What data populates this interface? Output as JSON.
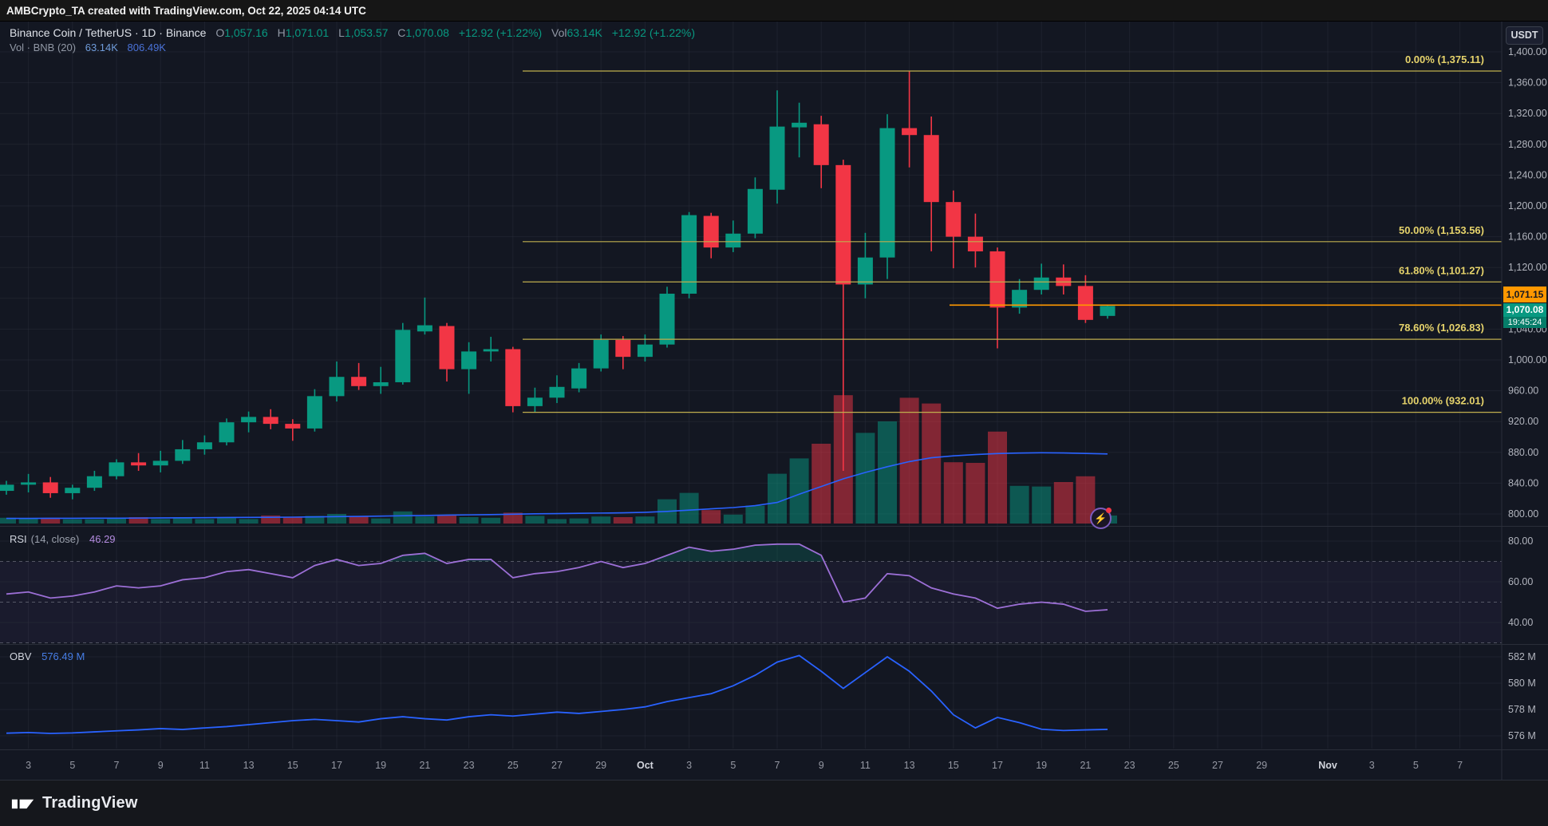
{
  "attribution": {
    "text": "AMBCrypto_TA created with TradingView.com, Oct 22, 2025 04:14 UTC"
  },
  "header": {
    "title": "Binance Coin / TetherUS · 1D · Binance",
    "o_label": "O",
    "o": "1,057.16",
    "h_label": "H",
    "h": "1,071.01",
    "l_label": "L",
    "l": "1,053.57",
    "c_label": "C",
    "c": "1,070.08",
    "change": "+12.92 (+1.22%)",
    "vol_label": "Vol",
    "vol_value": "63.14K",
    "vol_change": "+12.92 (+1.22%)",
    "indicator_name": "Vol · BNB (20)",
    "indicator_v1": "63.14K",
    "indicator_v2": "806.49K"
  },
  "axis": {
    "currency": "USDT"
  },
  "footer": {
    "logo_text": "TradingView"
  },
  "colors": {
    "up": "#089981",
    "down": "#f23645",
    "vol_up": "rgba(8,153,129,0.5)",
    "vol_down": "rgba(242,54,69,0.5)",
    "vol_ma": "#2962ff",
    "obv_line": "#2962ff",
    "rsi_line": "#9c6fd6",
    "fib_line": "#bfae4e",
    "fib_text": "#e6d36b",
    "price_ray": "#ff9800",
    "axis_text": "#b2b5be",
    "grid": "rgba(42,46,57,0.5)"
  },
  "chart_data": {
    "type": "candlestick",
    "title": "Binance Coin / TetherUS · 1D · Binance",
    "price_axis": {
      "min": 800,
      "max": 1400,
      "step": 40,
      "hidden_tick": 1080
    },
    "x_axis": {
      "labels": [
        [
          "3",
          1
        ],
        [
          "5",
          3
        ],
        [
          "7",
          5
        ],
        [
          "9",
          7
        ],
        [
          "11",
          9
        ],
        [
          "13",
          11
        ],
        [
          "15",
          13
        ],
        [
          "17",
          15
        ],
        [
          "19",
          17
        ],
        [
          "21",
          19
        ],
        [
          "23",
          21
        ],
        [
          "25",
          23
        ],
        [
          "27",
          25
        ],
        [
          "29",
          27
        ],
        [
          "Oct",
          29
        ],
        [
          "3",
          31
        ],
        [
          "5",
          33
        ],
        [
          "7",
          35
        ],
        [
          "9",
          37
        ],
        [
          "11",
          39
        ],
        [
          "13",
          41
        ],
        [
          "15",
          43
        ],
        [
          "17",
          45
        ],
        [
          "19",
          47
        ],
        [
          "21",
          49
        ],
        [
          "23",
          51
        ],
        [
          "25",
          53
        ],
        [
          "27",
          55
        ],
        [
          "29",
          57
        ],
        [
          "Nov",
          60
        ],
        [
          "3",
          62
        ],
        [
          "5",
          64
        ],
        [
          "7",
          66
        ]
      ]
    },
    "candles_note": "each row: [date, open, high, low, close, volume_K]",
    "candles": [
      [
        "Sep 2",
        830,
        843,
        825,
        838,
        45
      ],
      [
        "Sep 3",
        838,
        852,
        828,
        841,
        38
      ],
      [
        "Sep 4",
        841,
        848,
        821,
        827,
        45
      ],
      [
        "Sep 5",
        827,
        838,
        819,
        834,
        33
      ],
      [
        "Sep 6",
        834,
        856,
        830,
        849,
        33
      ],
      [
        "Sep 7",
        849,
        871,
        845,
        867,
        38
      ],
      [
        "Sep 8",
        867,
        879,
        856,
        863,
        50
      ],
      [
        "Sep 9",
        863,
        882,
        854,
        869,
        35
      ],
      [
        "Sep 10",
        869,
        896,
        865,
        884,
        48
      ],
      [
        "Sep 11",
        884,
        902,
        877,
        893,
        35
      ],
      [
        "Sep 12",
        893,
        924,
        889,
        919,
        50
      ],
      [
        "Sep 13",
        919,
        933,
        906,
        926,
        35
      ],
      [
        "Sep 14",
        926,
        936,
        910,
        917,
        63
      ],
      [
        "Sep 15",
        917,
        923,
        895,
        911,
        50
      ],
      [
        "Sep 16",
        911,
        962,
        907,
        953,
        60
      ],
      [
        "Sep 17",
        953,
        998,
        946,
        978,
        75
      ],
      [
        "Sep 18",
        978,
        996,
        961,
        966,
        55
      ],
      [
        "Sep 19",
        966,
        991,
        956,
        971,
        40
      ],
      [
        "Sep 20",
        971,
        1048,
        968,
        1039,
        95
      ],
      [
        "Sep 21",
        1037,
        1081,
        1033,
        1045,
        55
      ],
      [
        "Sep 22",
        1044,
        1048,
        972,
        988,
        65
      ],
      [
        "Sep 23",
        988,
        1023,
        956,
        1011,
        50
      ],
      [
        "Sep 24",
        1011,
        1030,
        998,
        1014,
        45
      ],
      [
        "Sep 25",
        1014,
        1017,
        932.01,
        940,
        85
      ],
      [
        "Sep 26",
        940,
        964,
        932,
        951,
        60
      ],
      [
        "Sep 27",
        951,
        980,
        944,
        965,
        35
      ],
      [
        "Sep 28",
        963,
        996,
        958,
        989,
        40
      ],
      [
        "Sep 29",
        989,
        1033,
        985,
        1026,
        55
      ],
      [
        "Sep 30",
        1026,
        1031,
        988,
        1004,
        50
      ],
      [
        "Oct 1",
        1004,
        1033,
        998,
        1020,
        55
      ],
      [
        "Oct 2",
        1020,
        1095,
        1016,
        1086,
        190
      ],
      [
        "Oct 3",
        1086,
        1192,
        1080,
        1188,
        240
      ],
      [
        "Oct 4",
        1187,
        1191,
        1132,
        1146,
        105
      ],
      [
        "Oct 5",
        1146,
        1181,
        1140,
        1164,
        70
      ],
      [
        "Oct 6",
        1164,
        1237,
        1158,
        1222,
        140
      ],
      [
        "Oct 7",
        1221,
        1350,
        1203,
        1303,
        390
      ],
      [
        "Oct 8",
        1302,
        1334,
        1263,
        1308,
        510
      ],
      [
        "Oct 9",
        1306,
        1317,
        1223,
        1253,
        625
      ],
      [
        "Oct 10",
        1253,
        1260,
        856,
        1098,
        1005
      ],
      [
        "Oct 11",
        1098,
        1165,
        1080,
        1133,
        710
      ],
      [
        "Oct 12",
        1133,
        1319,
        1105,
        1301,
        800
      ],
      [
        "Oct 13",
        1301,
        1375.11,
        1250,
        1292,
        985
      ],
      [
        "Oct 14",
        1292,
        1316,
        1141,
        1205,
        940
      ],
      [
        "Oct 15",
        1205,
        1220,
        1119,
        1160,
        480
      ],
      [
        "Oct 16",
        1160,
        1190,
        1120,
        1141,
        475
      ],
      [
        "Oct 17",
        1141,
        1146,
        1015,
        1068,
        720
      ],
      [
        "Oct 18",
        1068,
        1105,
        1060,
        1091,
        295
      ],
      [
        "Oct 19",
        1091,
        1125,
        1085,
        1107,
        290
      ],
      [
        "Oct 20",
        1107,
        1124,
        1085,
        1096,
        325
      ],
      [
        "Oct 21",
        1096,
        1110,
        1048,
        1052,
        370
      ],
      [
        "Oct 22",
        1057.16,
        1071.01,
        1053.57,
        1070.08,
        63.14
      ]
    ],
    "volume_ma_K": [
      40,
      40,
      41,
      41,
      42,
      42,
      43,
      44,
      45,
      46,
      47,
      48,
      49,
      50,
      52,
      54,
      56,
      58,
      61,
      63,
      66,
      68,
      70,
      73,
      76,
      78,
      80,
      82,
      84,
      88,
      95,
      105,
      115,
      125,
      140,
      165,
      230,
      290,
      350,
      400,
      445,
      485,
      515,
      530,
      540,
      548,
      552,
      554,
      553,
      549,
      545
    ],
    "fib_levels": [
      {
        "label": "0.00% (1,375.11)",
        "price": 1375.11
      },
      {
        "label": "50.00% (1,153.56)",
        "price": 1153.56
      },
      {
        "label": "61.80% (1,101.27)",
        "price": 1101.27
      },
      {
        "label": "78.60% (1,026.83)",
        "price": 1026.83
      },
      {
        "label": "100.00% (932.01)",
        "price": 932.01
      }
    ],
    "price_line": {
      "price": 1071.15,
      "label": "1,071.15",
      "close_price": 1070.08,
      "close_label": "1,070.08",
      "countdown": "19:45:24"
    },
    "rsi": {
      "title": "RSI",
      "params": "(14, close)",
      "value_text": "46.29",
      "current": 46.29,
      "bands": [
        70,
        50,
        30
      ],
      "axis_ticks": [
        80,
        60,
        40
      ],
      "series": [
        54,
        55,
        52,
        53,
        55,
        58,
        57,
        58,
        61,
        62,
        65,
        66,
        64,
        62,
        68,
        71,
        68,
        69,
        73,
        74,
        69,
        71,
        71,
        62,
        64,
        65,
        67,
        70,
        67,
        69,
        73,
        77,
        75,
        76,
        78,
        78.5,
        78.5,
        73,
        50,
        52,
        64,
        63,
        57,
        54,
        52,
        47,
        49,
        50,
        49,
        45.5,
        46.29
      ]
    },
    "obv": {
      "title": "OBV",
      "value_text": "576.49 M",
      "current_m": 576.49,
      "axis_ticks_m": [
        582,
        580,
        578,
        576
      ],
      "series_m": [
        576.2,
        576.25,
        576.18,
        576.22,
        576.3,
        576.38,
        576.45,
        576.55,
        576.48,
        576.6,
        576.7,
        576.85,
        577.0,
        577.15,
        577.25,
        577.15,
        577.05,
        577.3,
        577.45,
        577.3,
        577.2,
        577.45,
        577.6,
        577.5,
        577.65,
        577.8,
        577.7,
        577.85,
        578.0,
        578.2,
        578.6,
        578.9,
        579.2,
        579.8,
        580.6,
        581.6,
        582.1,
        580.9,
        579.6,
        580.8,
        582.0,
        580.9,
        579.4,
        577.6,
        576.6,
        577.4,
        577.0,
        576.5,
        576.4,
        576.45,
        576.49
      ]
    }
  }
}
